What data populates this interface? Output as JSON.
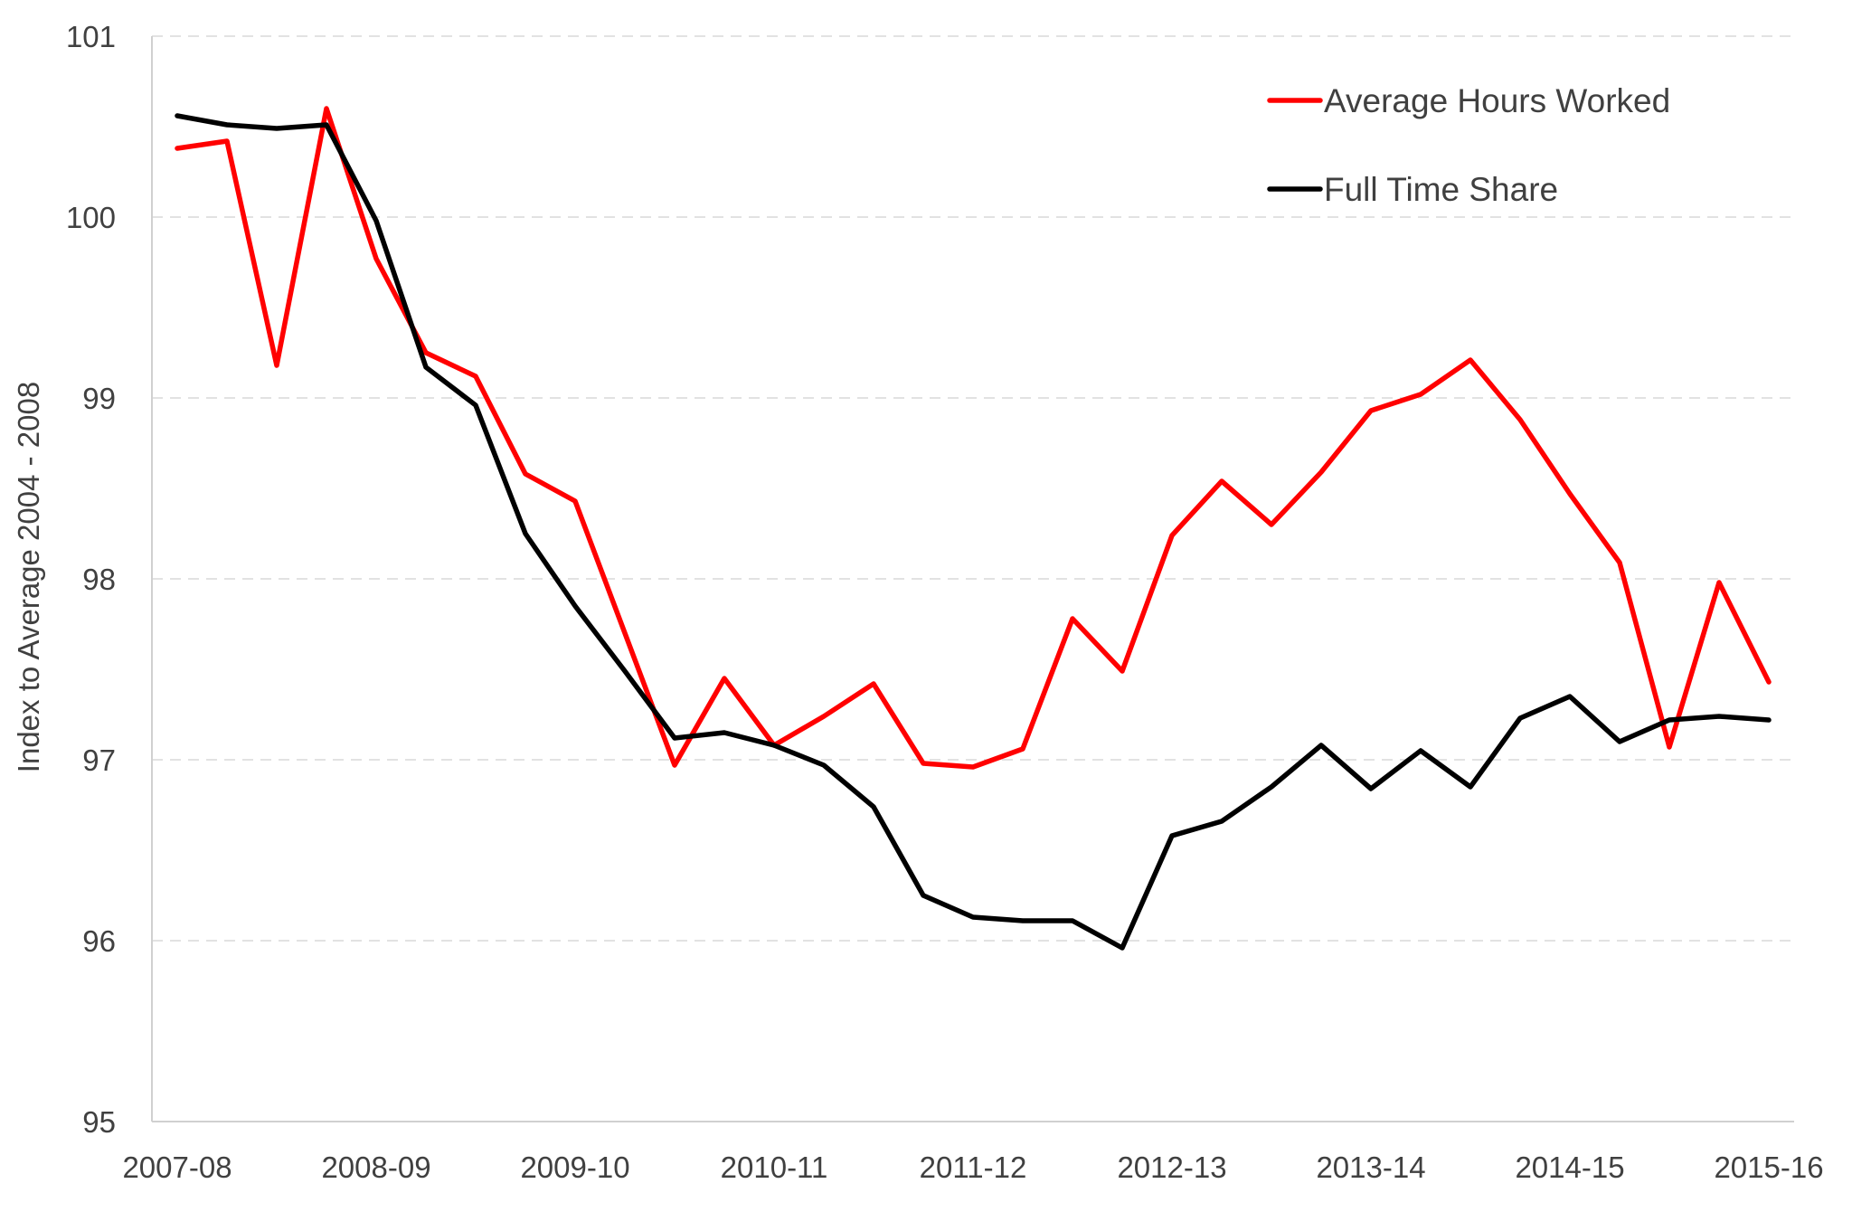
{
  "chart_data": {
    "type": "line",
    "title": "",
    "xlabel": "",
    "ylabel": "Index to Average 2004 - 2008",
    "ylim": [
      95,
      101
    ],
    "yticks": [
      95,
      96,
      97,
      98,
      99,
      100,
      101
    ],
    "grid": true,
    "legend_position": "top-right",
    "x_tick_labels": [
      "2007-08",
      "2008-09",
      "2009-10",
      "2010-11",
      "2011-12",
      "2012-13",
      "2013-14",
      "2014-15",
      "2015-16"
    ],
    "x_tick_every": 4,
    "series": [
      {
        "name": "Average Hours Worked",
        "color": "#ff0000",
        "values": [
          100.38,
          100.42,
          99.18,
          100.6,
          99.77,
          99.25,
          99.12,
          98.58,
          98.43,
          97.7,
          96.97,
          97.45,
          97.08,
          97.24,
          97.42,
          96.98,
          96.96,
          97.06,
          97.78,
          97.49,
          98.24,
          98.54,
          98.3,
          98.59,
          98.93,
          99.02,
          99.21,
          98.88,
          98.47,
          98.09,
          97.07,
          97.98,
          97.43
        ]
      },
      {
        "name": "Full Time Share",
        "color": "#000000",
        "values": [
          100.56,
          100.51,
          100.49,
          100.51,
          99.98,
          99.17,
          98.96,
          98.25,
          97.85,
          97.49,
          97.12,
          97.15,
          97.08,
          96.97,
          96.74,
          96.25,
          96.13,
          96.11,
          96.11,
          95.96,
          96.58,
          96.66,
          96.85,
          97.08,
          96.84,
          97.05,
          96.85,
          97.23,
          97.35,
          97.1,
          97.22,
          97.24,
          97.22
        ]
      }
    ]
  }
}
